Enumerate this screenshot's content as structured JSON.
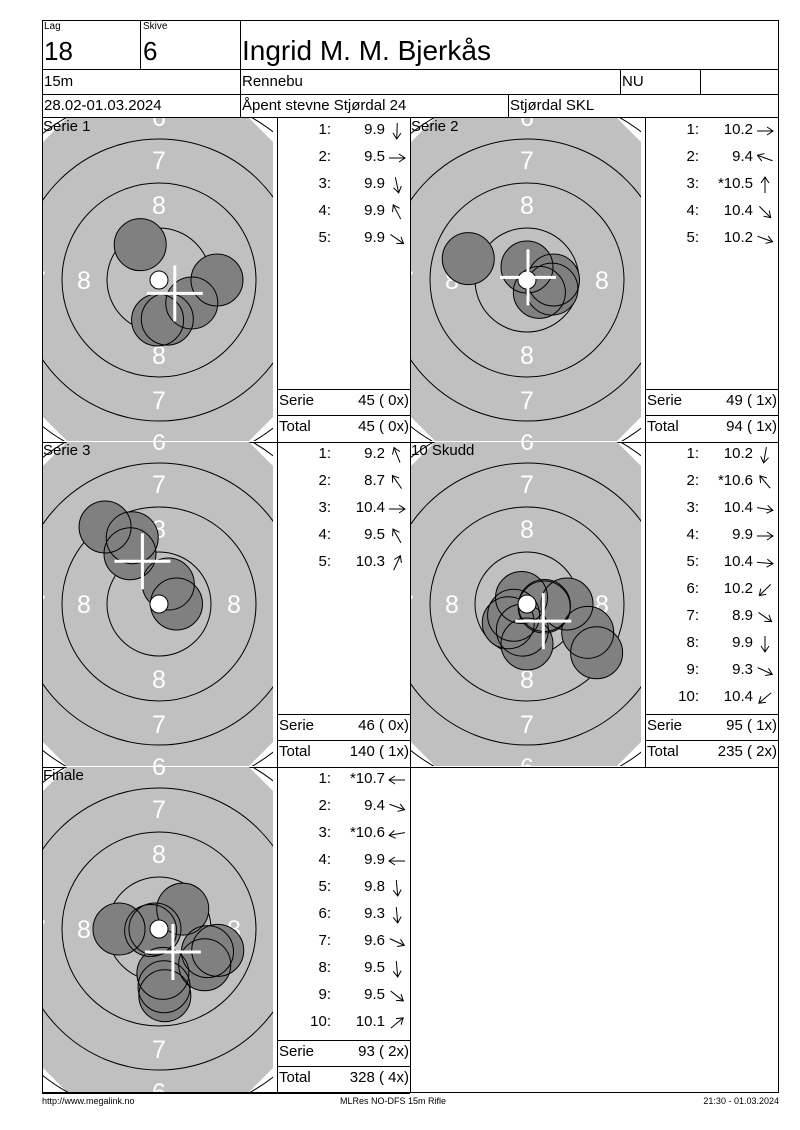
{
  "header": {
    "lag_label": "Lag",
    "lag": "18",
    "skive_label": "Skive",
    "skive": "6",
    "name": "Ingrid M. M. Bjerkås",
    "distance": "15m",
    "club": "Rennebu",
    "class": "NU",
    "date": "28.02-01.03.2024",
    "event": "Åpent stevne Stjørdal 24",
    "organizer": "Stjørdal SKL"
  },
  "colors": {
    "target_bg": "#c0c0c0",
    "shot_fill": "#808080",
    "ring_label": "#ffffff"
  },
  "ring_labels": [
    "6",
    "7",
    "8"
  ],
  "panels": [
    {
      "title": "Serie 1",
      "shots": [
        {
          "n": "1:",
          "v": "9.9",
          "dir": 268
        },
        {
          "n": "2:",
          "v": "9.5",
          "dir": 0
        },
        {
          "n": "3:",
          "v": "9.9",
          "dir": 282
        },
        {
          "n": "4:",
          "v": "9.9",
          "dir": 118
        },
        {
          "n": "5:",
          "v": "9.9",
          "dir": 325
        }
      ],
      "serie_label": "Serie",
      "serie": "45 ( 0x)",
      "total_label": "Total",
      "total": "45 ( 0x)"
    },
    {
      "title": "Serie 2",
      "shots": [
        {
          "n": "1:",
          "v": "10.2",
          "dir": 0
        },
        {
          "n": "2:",
          "v": "9.4",
          "dir": 160
        },
        {
          "n": "3:",
          "v": "*10.5",
          "dir": 90
        },
        {
          "n": "4:",
          "v": "10.4",
          "dir": 315
        },
        {
          "n": "5:",
          "v": "10.2",
          "dir": 340
        }
      ],
      "serie_label": "Serie",
      "serie": "49 ( 1x)",
      "total_label": "Total",
      "total": "94 ( 1x)"
    },
    {
      "title": "Serie 3",
      "shots": [
        {
          "n": "1:",
          "v": "9.2",
          "dir": 112
        },
        {
          "n": "2:",
          "v": "8.7",
          "dir": 125
        },
        {
          "n": "3:",
          "v": "10.4",
          "dir": 0
        },
        {
          "n": "4:",
          "v": "9.5",
          "dir": 120
        },
        {
          "n": "5:",
          "v": "10.3",
          "dir": 65
        }
      ],
      "serie_label": "Serie",
      "serie": "46 ( 0x)",
      "total_label": "Total",
      "total": "140 ( 1x)"
    },
    {
      "title": "10 Skudd",
      "shots": [
        {
          "n": "1:",
          "v": "10.2",
          "dir": 260
        },
        {
          "n": "2:",
          "v": "*10.6",
          "dir": 130
        },
        {
          "n": "3:",
          "v": "10.4",
          "dir": 350
        },
        {
          "n": "4:",
          "v": "9.9",
          "dir": 0
        },
        {
          "n": "5:",
          "v": "10.4",
          "dir": 355
        },
        {
          "n": "6:",
          "v": "10.2",
          "dir": 225
        },
        {
          "n": "7:",
          "v": "8.9",
          "dir": 325
        },
        {
          "n": "8:",
          "v": "9.9",
          "dir": 270
        },
        {
          "n": "9:",
          "v": "9.3",
          "dir": 335
        },
        {
          "n": "10:",
          "v": "10.4",
          "dir": 220
        }
      ],
      "serie_label": "Serie",
      "serie": "95 ( 1x)",
      "total_label": "Total",
      "total": "235 ( 2x)"
    },
    {
      "title": "Finale",
      "shots": [
        {
          "n": "1:",
          "v": "*10.7",
          "dir": 180
        },
        {
          "n": "2:",
          "v": "9.4",
          "dir": 340
        },
        {
          "n": "3:",
          "v": "*10.6",
          "dir": 190
        },
        {
          "n": "4:",
          "v": "9.9",
          "dir": 180
        },
        {
          "n": "5:",
          "v": "9.8",
          "dir": 275
        },
        {
          "n": "6:",
          "v": "9.3",
          "dir": 275
        },
        {
          "n": "7:",
          "v": "9.6",
          "dir": 335
        },
        {
          "n": "8:",
          "v": "9.5",
          "dir": 275
        },
        {
          "n": "9:",
          "v": "9.5",
          "dir": 322
        },
        {
          "n": "10:",
          "v": "10.1",
          "dir": 40
        }
      ],
      "serie_label": "Serie",
      "serie": "93 ( 2x)",
      "total_label": "Total",
      "total": "328 ( 4x)"
    }
  ],
  "footer": {
    "url": "http://www.megalink.no",
    "program": "MLRes NO-DFS 15m Rifle",
    "timestamp": "21:30 - 01.03.2024"
  }
}
